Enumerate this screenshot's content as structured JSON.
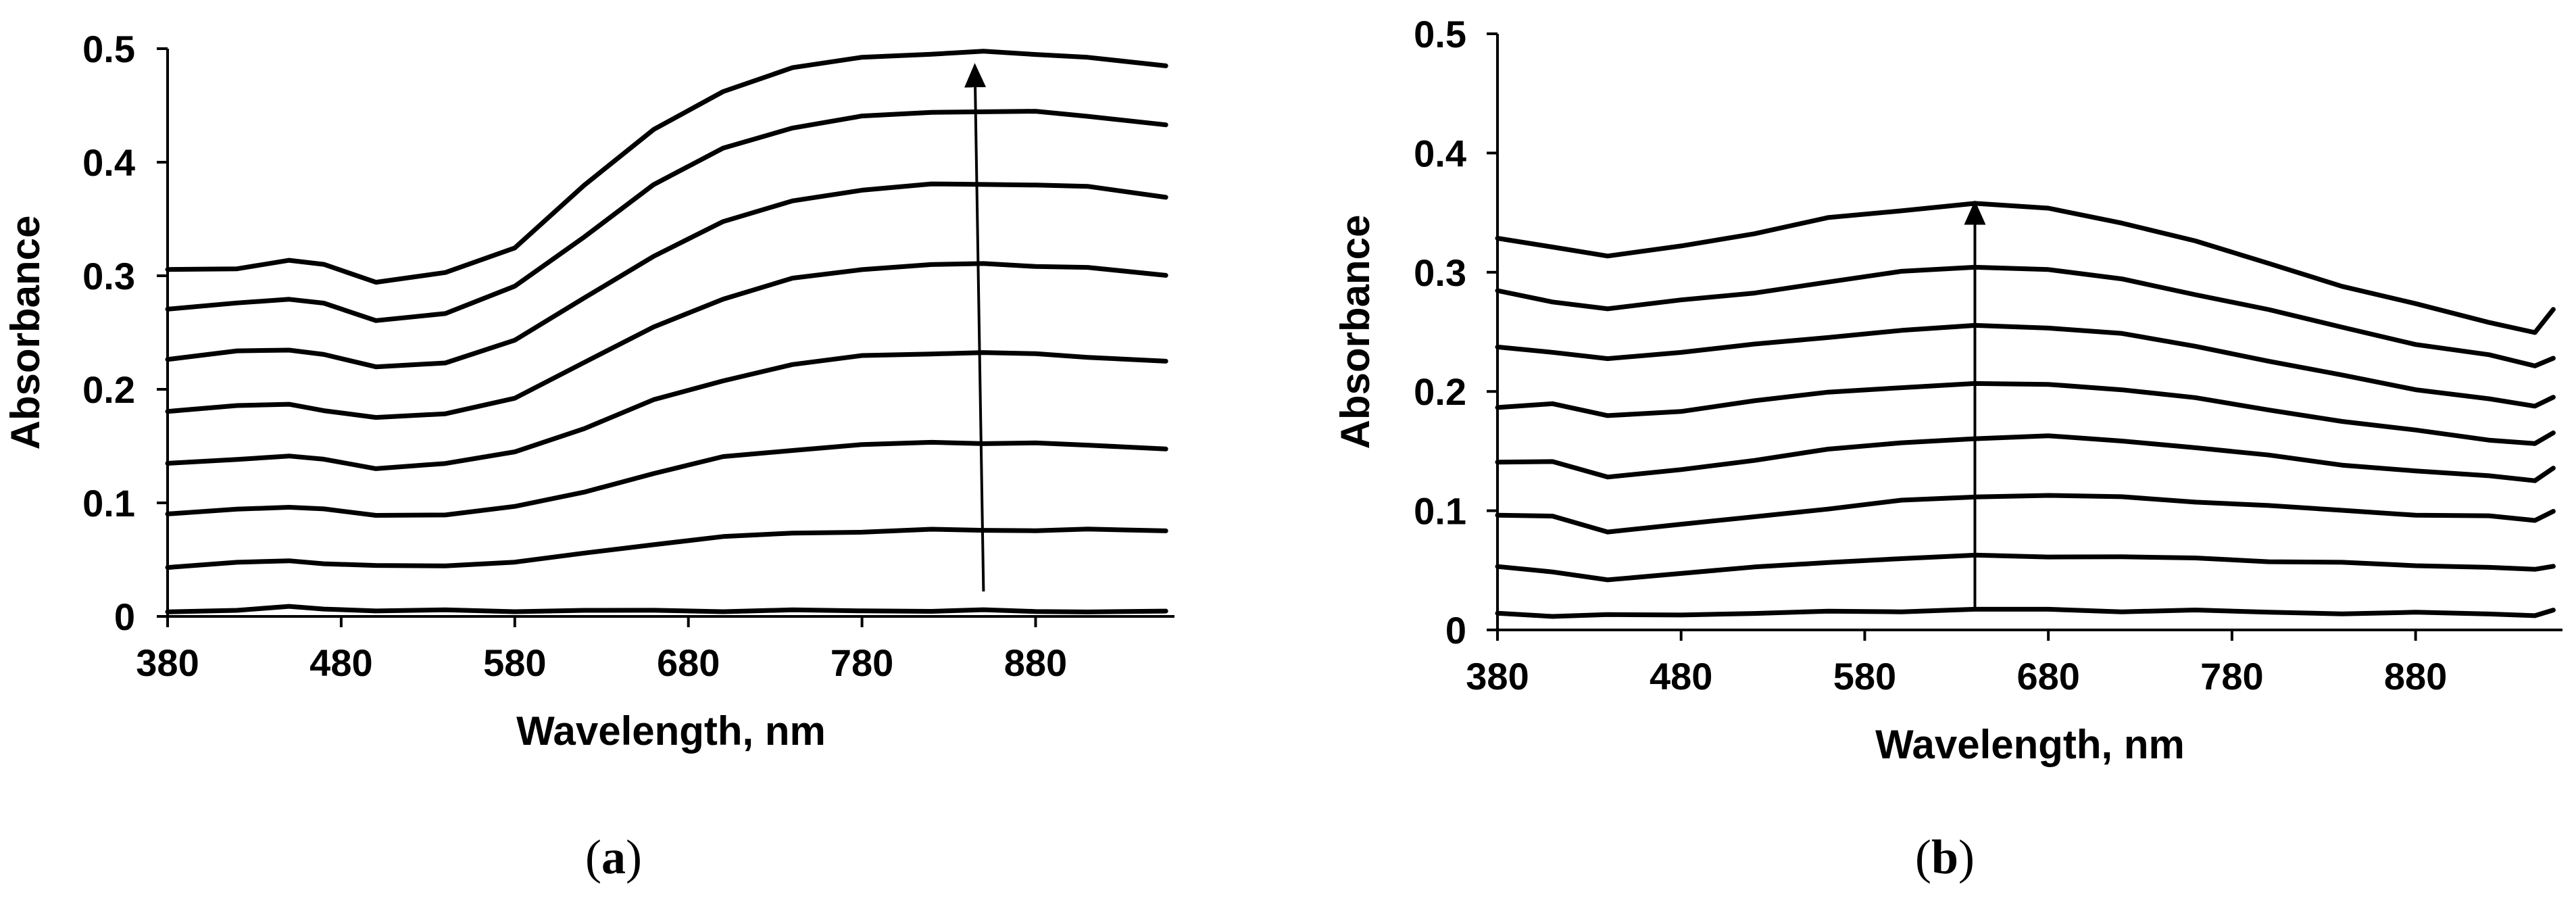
{
  "chart_data": [
    {
      "type": "line",
      "panel_label": "(a)",
      "panel_paren_open": "(",
      "panel_letter": "a",
      "panel_paren_close": ")",
      "xlabel": "Wavelength, nm",
      "ylabel": "Absorbance",
      "xlim": [
        380,
        960
      ],
      "ylim": [
        0,
        0.5
      ],
      "x_ticks": [
        380,
        480,
        580,
        680,
        780,
        880
      ],
      "y_ticks": [
        0,
        0.1,
        0.2,
        0.3,
        0.4,
        0.5
      ],
      "y_tick_labels": [
        "0",
        "0.1",
        "0.2",
        "0.3",
        "0.4",
        "0.5"
      ],
      "grid": false,
      "arrow": {
        "x_start": 850,
        "y_start": 0.022,
        "x_end": 845,
        "y_end": 0.485
      },
      "series": [
        {
          "x": [
            380,
            420,
            450,
            470,
            500,
            540,
            580,
            620,
            660,
            700,
            740,
            780,
            820,
            850,
            880,
            910,
            955
          ],
          "values": [
            0.004,
            0.006,
            0.008,
            0.007,
            0.005,
            0.005,
            0.005,
            0.005,
            0.005,
            0.005,
            0.005,
            0.005,
            0.005,
            0.005,
            0.005,
            0.004,
            0.004
          ]
        },
        {
          "x": [
            380,
            420,
            450,
            470,
            500,
            540,
            580,
            620,
            660,
            700,
            740,
            780,
            820,
            850,
            880,
            910,
            955
          ],
          "values": [
            0.044,
            0.047,
            0.049,
            0.047,
            0.044,
            0.045,
            0.048,
            0.055,
            0.064,
            0.07,
            0.073,
            0.075,
            0.076,
            0.076,
            0.076,
            0.076,
            0.076
          ]
        },
        {
          "x": [
            380,
            420,
            450,
            470,
            500,
            540,
            580,
            620,
            660,
            700,
            740,
            780,
            820,
            850,
            880,
            910,
            955
          ],
          "values": [
            0.09,
            0.094,
            0.097,
            0.094,
            0.089,
            0.09,
            0.096,
            0.11,
            0.126,
            0.14,
            0.147,
            0.151,
            0.153,
            0.153,
            0.152,
            0.151,
            0.148
          ]
        },
        {
          "x": [
            380,
            420,
            450,
            470,
            500,
            540,
            580,
            620,
            660,
            700,
            740,
            780,
            820,
            850,
            880,
            910,
            955
          ],
          "values": [
            0.134,
            0.139,
            0.141,
            0.138,
            0.131,
            0.134,
            0.145,
            0.166,
            0.19,
            0.208,
            0.222,
            0.229,
            0.232,
            0.232,
            0.231,
            0.229,
            0.224
          ]
        },
        {
          "x": [
            380,
            420,
            450,
            470,
            500,
            540,
            580,
            620,
            660,
            700,
            740,
            780,
            820,
            850,
            880,
            910,
            955
          ],
          "values": [
            0.181,
            0.186,
            0.186,
            0.182,
            0.175,
            0.178,
            0.193,
            0.223,
            0.255,
            0.28,
            0.297,
            0.306,
            0.31,
            0.31,
            0.309,
            0.307,
            0.3
          ]
        },
        {
          "x": [
            380,
            420,
            450,
            470,
            500,
            540,
            580,
            620,
            660,
            700,
            740,
            780,
            820,
            850,
            880,
            910,
            955
          ],
          "values": [
            0.227,
            0.233,
            0.235,
            0.231,
            0.219,
            0.224,
            0.243,
            0.28,
            0.318,
            0.347,
            0.366,
            0.376,
            0.38,
            0.381,
            0.38,
            0.378,
            0.37
          ]
        },
        {
          "x": [
            380,
            420,
            450,
            470,
            500,
            540,
            580,
            620,
            660,
            700,
            740,
            780,
            820,
            850,
            880,
            910,
            955
          ],
          "values": [
            0.27,
            0.276,
            0.28,
            0.275,
            0.261,
            0.267,
            0.29,
            0.335,
            0.38,
            0.412,
            0.431,
            0.44,
            0.444,
            0.445,
            0.444,
            0.441,
            0.433
          ]
        },
        {
          "x": [
            380,
            420,
            450,
            470,
            500,
            540,
            580,
            620,
            660,
            700,
            740,
            780,
            820,
            850,
            880,
            910,
            955
          ],
          "values": [
            0.305,
            0.307,
            0.313,
            0.31,
            0.295,
            0.302,
            0.325,
            0.38,
            0.428,
            0.463,
            0.483,
            0.492,
            0.496,
            0.497,
            0.495,
            0.493,
            0.484
          ]
        }
      ]
    },
    {
      "type": "line",
      "panel_label": "(b)",
      "panel_paren_open": "(",
      "panel_letter": "b",
      "panel_paren_close": ")",
      "xlabel": "Wavelength, nm",
      "ylabel": "Absorbance",
      "xlim": [
        380,
        960
      ],
      "ylim": [
        0,
        0.5
      ],
      "x_ticks": [
        380,
        480,
        580,
        680,
        780,
        880
      ],
      "y_ticks": [
        0,
        0.1,
        0.2,
        0.3,
        0.4,
        0.5
      ],
      "y_tick_labels": [
        "0",
        "0.1",
        "0.2",
        "0.3",
        "0.4",
        "0.5"
      ],
      "grid": false,
      "arrow": {
        "x_start": 640,
        "y_start": 0.018,
        "x_end": 640,
        "y_end": 0.358
      },
      "series": [
        {
          "x": [
            380,
            410,
            440,
            480,
            520,
            560,
            600,
            640,
            680,
            720,
            760,
            800,
            840,
            880,
            920,
            945,
            955
          ],
          "values": [
            0.014,
            0.012,
            0.012,
            0.013,
            0.014,
            0.015,
            0.016,
            0.017,
            0.017,
            0.016,
            0.016,
            0.015,
            0.014,
            0.014,
            0.014,
            0.012,
            0.016
          ]
        },
        {
          "x": [
            380,
            410,
            440,
            480,
            520,
            560,
            600,
            640,
            680,
            720,
            760,
            800,
            840,
            880,
            920,
            945,
            955
          ],
          "values": [
            0.054,
            0.048,
            0.042,
            0.048,
            0.052,
            0.057,
            0.06,
            0.062,
            0.062,
            0.061,
            0.06,
            0.058,
            0.056,
            0.054,
            0.053,
            0.05,
            0.054
          ]
        },
        {
          "x": [
            380,
            410,
            440,
            480,
            520,
            560,
            600,
            640,
            680,
            720,
            760,
            800,
            840,
            880,
            920,
            945,
            955
          ],
          "values": [
            0.096,
            0.095,
            0.083,
            0.088,
            0.095,
            0.102,
            0.108,
            0.112,
            0.113,
            0.111,
            0.108,
            0.104,
            0.1,
            0.097,
            0.095,
            0.092,
            0.1
          ]
        },
        {
          "x": [
            380,
            410,
            440,
            480,
            520,
            560,
            600,
            640,
            680,
            720,
            760,
            800,
            840,
            880,
            920,
            945,
            955
          ],
          "values": [
            0.14,
            0.142,
            0.128,
            0.134,
            0.143,
            0.151,
            0.157,
            0.161,
            0.162,
            0.159,
            0.153,
            0.146,
            0.139,
            0.133,
            0.129,
            0.126,
            0.135
          ]
        },
        {
          "x": [
            380,
            410,
            440,
            480,
            520,
            560,
            600,
            640,
            680,
            720,
            760,
            800,
            840,
            880,
            920,
            945,
            955
          ],
          "values": [
            0.187,
            0.19,
            0.179,
            0.184,
            0.192,
            0.199,
            0.204,
            0.206,
            0.206,
            0.202,
            0.194,
            0.185,
            0.175,
            0.167,
            0.16,
            0.156,
            0.165
          ]
        },
        {
          "x": [
            380,
            410,
            440,
            480,
            520,
            560,
            600,
            640,
            680,
            720,
            760,
            800,
            840,
            880,
            920,
            945,
            955
          ],
          "values": [
            0.238,
            0.232,
            0.228,
            0.233,
            0.239,
            0.246,
            0.251,
            0.255,
            0.254,
            0.248,
            0.238,
            0.226,
            0.213,
            0.202,
            0.194,
            0.187,
            0.196
          ]
        },
        {
          "x": [
            380,
            410,
            440,
            480,
            520,
            560,
            600,
            640,
            680,
            720,
            760,
            800,
            840,
            880,
            920,
            945,
            955
          ],
          "values": [
            0.284,
            0.275,
            0.27,
            0.276,
            0.283,
            0.292,
            0.3,
            0.305,
            0.302,
            0.294,
            0.282,
            0.268,
            0.254,
            0.24,
            0.23,
            0.222,
            0.228
          ]
        },
        {
          "x": [
            380,
            410,
            440,
            480,
            520,
            560,
            600,
            640,
            680,
            720,
            760,
            800,
            840,
            880,
            920,
            945,
            955
          ],
          "values": [
            0.328,
            0.322,
            0.313,
            0.322,
            0.333,
            0.345,
            0.352,
            0.358,
            0.353,
            0.342,
            0.326,
            0.307,
            0.289,
            0.273,
            0.258,
            0.25,
            0.268
          ]
        }
      ]
    }
  ]
}
